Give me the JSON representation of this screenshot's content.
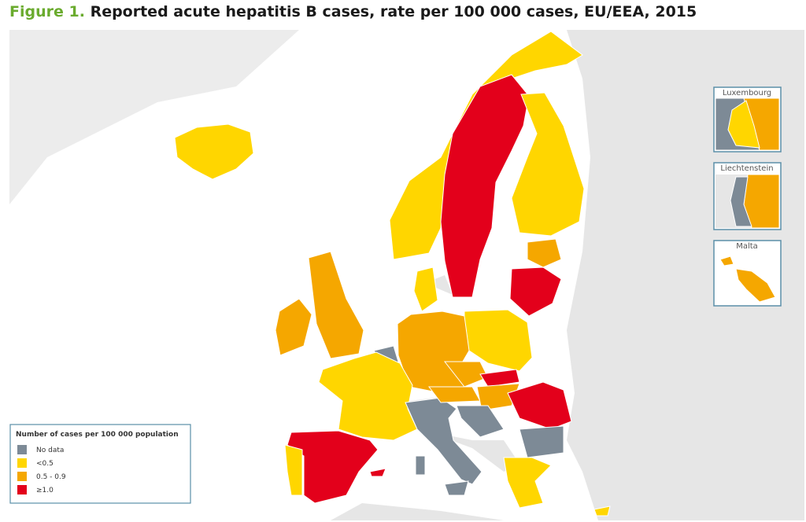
{
  "header": {
    "figure_label": "Figure 1.",
    "title": "Reported acute hepatitis B cases, rate per 100 000 cases, EU/EEA, 2015"
  },
  "insets": [
    {
      "label": "Luxembourg"
    },
    {
      "label": "Liechtenstein"
    },
    {
      "label": "Malta"
    }
  ],
  "legend": {
    "title": "Number of cases per 100 000 population",
    "items": [
      {
        "label": "No data",
        "color": "#7d8a96"
      },
      {
        "label": "<0.5",
        "color": "#ffd600"
      },
      {
        "label": "0.5 - 0.9",
        "color": "#f5a700"
      },
      {
        "label": "≥1.0",
        "color": "#e3001b"
      }
    ]
  }
}
